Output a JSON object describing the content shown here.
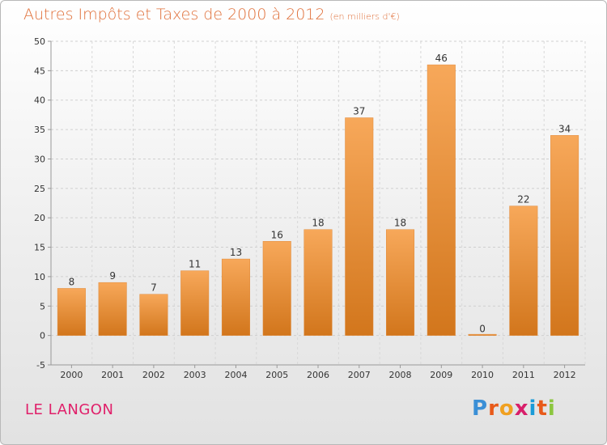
{
  "chart_data": {
    "type": "bar",
    "title": "Autres Impôts et Taxes de 2000 à 2012",
    "subtitle": "(en milliers d'€)",
    "categories": [
      "2000",
      "2001",
      "2002",
      "2003",
      "2004",
      "2005",
      "2006",
      "2007",
      "2008",
      "2009",
      "2010",
      "2011",
      "2012"
    ],
    "values": [
      8,
      9,
      7,
      11,
      13,
      16,
      18,
      37,
      18,
      46,
      0,
      22,
      34
    ],
    "data_labels": [
      "8",
      "9",
      "7",
      "11",
      "13",
      "16",
      "18",
      "37",
      "18",
      "46",
      "0",
      "22",
      "34"
    ],
    "ylim": [
      -5,
      50
    ],
    "yticks": [
      -5,
      0,
      5,
      10,
      15,
      20,
      25,
      30,
      35,
      40,
      45,
      50
    ],
    "ytick_labels": [
      "-5",
      "0",
      "5",
      "10",
      "15",
      "20",
      "25",
      "30",
      "35",
      "40",
      "45",
      "50"
    ],
    "grid": true,
    "bar_color_top": "#f7a85a",
    "bar_color_bottom": "#d2761c"
  },
  "commune": "LE LANGON",
  "logo": {
    "letters": [
      "P",
      "r",
      "o",
      "x",
      "i",
      "t",
      "i"
    ],
    "colors": [
      "#3a8fd6",
      "#e85a1a",
      "#f0a020",
      "#d81f6a",
      "#1a9bd7",
      "#e85a1a",
      "#8cc63f"
    ]
  }
}
